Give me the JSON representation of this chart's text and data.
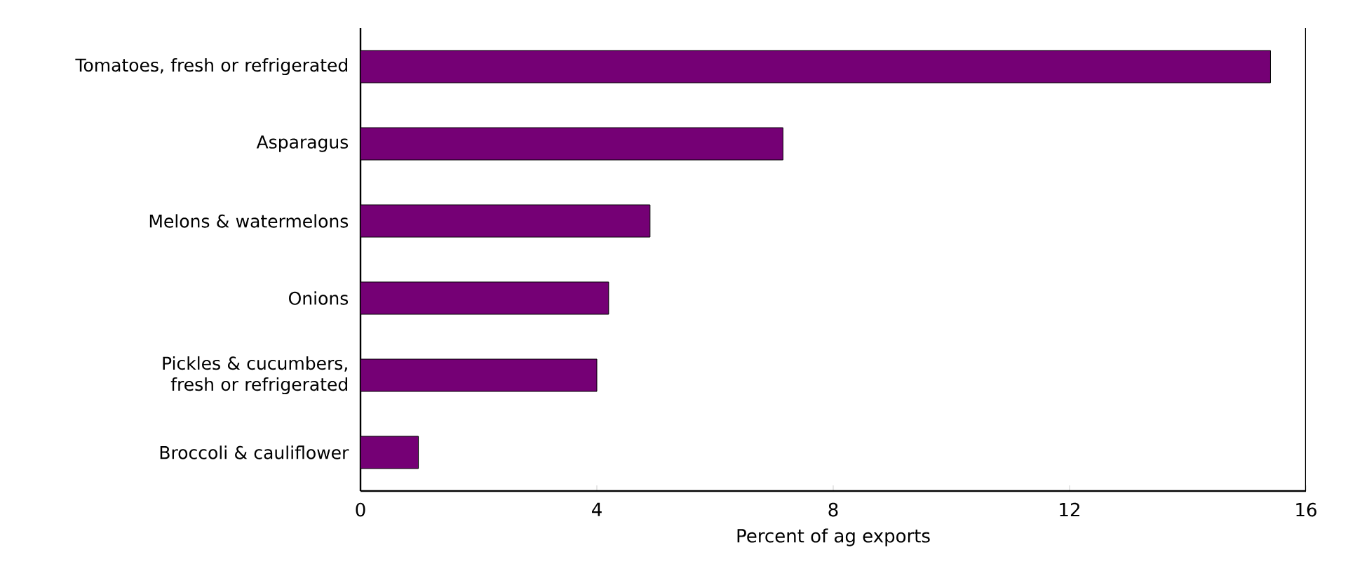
{
  "chart_data": {
    "type": "bar",
    "orientation": "horizontal",
    "xlabel": "Percent of ag exports",
    "categories": [
      "Tomatoes, fresh or refrigerated",
      "Asparagus",
      "Melons & watermelons",
      "Onions",
      "Pickles & cucumbers, fresh or refrigerated",
      "Broccoli & cauliflower"
    ],
    "values": [
      15.4,
      7.15,
      4.9,
      4.2,
      4.0,
      0.98
    ],
    "color": "#750075",
    "xlim": [
      0,
      16
    ],
    "xticks": [
      0,
      4,
      8,
      12,
      16
    ],
    "grid": false
  }
}
